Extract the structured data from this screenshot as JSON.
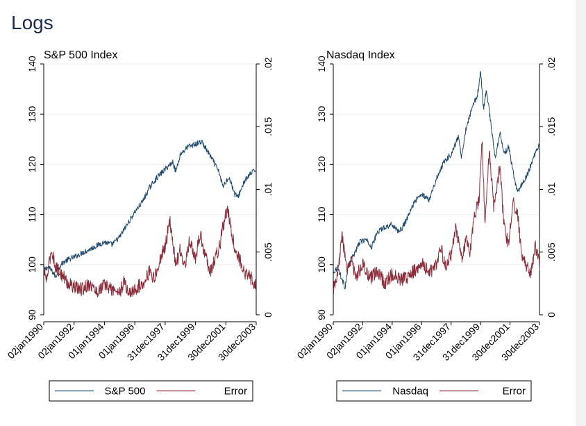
{
  "page": {
    "title": "Logs"
  },
  "colors": {
    "index_line": "#1f4a6e",
    "error_line": "#8b2d3a",
    "grid": "#e9eef2",
    "axis": "#000000",
    "title": "#1a2c4e"
  },
  "chart_data": [
    {
      "type": "line",
      "title": "S&P 500 Index",
      "xlabel": "",
      "ylabel": "",
      "x_ticks": [
        "02jan1990",
        "02jan1992",
        "01jan1994",
        "01jan1996",
        "31dec1997",
        "31dec1999",
        "30dec2001",
        "30dec2003"
      ],
      "x_range": [
        "02jan1990",
        "30dec2003"
      ],
      "y_left": {
        "range": [
          90,
          140
        ],
        "ticks": [
          "90",
          "100",
          "110",
          "120",
          "130",
          "140"
        ]
      },
      "y_right": {
        "range": [
          0,
          0.02
        ],
        "ticks": [
          "0",
          ".005",
          ".01",
          ".015",
          ".02"
        ]
      },
      "grid": true,
      "legend_position": "bottom",
      "series": [
        {
          "name": "S&P 500",
          "axis": "left",
          "x": [
            1990.0,
            1990.3,
            1990.6,
            1990.8,
            1991.0,
            1991.3,
            1991.6,
            1992.0,
            1992.5,
            1993.0,
            1993.5,
            1994.0,
            1994.5,
            1995.0,
            1995.5,
            1996.0,
            1996.5,
            1997.0,
            1997.5,
            1998.0,
            1998.5,
            1998.7,
            1999.0,
            1999.5,
            2000.0,
            2000.4,
            2000.8,
            2001.2,
            2001.6,
            2001.8,
            2002.2,
            2002.6,
            2002.8,
            2003.2,
            2003.6,
            2004.0
          ],
          "values": [
            99.0,
            99.5,
            98.5,
            97.5,
            99.5,
            100.5,
            101.0,
            101.5,
            102.3,
            103.0,
            103.8,
            104.5,
            104.0,
            105.5,
            108.0,
            110.5,
            112.5,
            115.5,
            117.5,
            119.0,
            120.5,
            118.5,
            122.0,
            123.5,
            124.0,
            124.5,
            122.5,
            120.5,
            118.0,
            115.5,
            117.5,
            114.0,
            113.5,
            116.5,
            118.0,
            119.0
          ]
        },
        {
          "name": "Error",
          "axis": "right",
          "x": [
            1990.0,
            1990.2,
            1990.5,
            1990.8,
            1991.2,
            1991.6,
            1992.0,
            1992.5,
            1993.0,
            1993.5,
            1994.0,
            1994.5,
            1995.0,
            1995.3,
            1995.6,
            1996.0,
            1996.5,
            1997.0,
            1997.3,
            1997.6,
            1998.0,
            1998.3,
            1998.7,
            1999.0,
            1999.3,
            1999.6,
            2000.0,
            2000.3,
            2000.6,
            2001.0,
            2001.3,
            2001.6,
            2001.8,
            2002.1,
            2002.4,
            2002.7,
            2003.0,
            2003.3,
            2003.6,
            2004.0
          ],
          "values": [
            0.0035,
            0.0028,
            0.0052,
            0.0038,
            0.0032,
            0.0025,
            0.0022,
            0.002,
            0.0025,
            0.0018,
            0.0024,
            0.002,
            0.0018,
            0.0026,
            0.0017,
            0.002,
            0.0025,
            0.0035,
            0.0028,
            0.0042,
            0.0055,
            0.0075,
            0.004,
            0.0052,
            0.0038,
            0.0058,
            0.0045,
            0.0065,
            0.0048,
            0.0035,
            0.0045,
            0.0055,
            0.007,
            0.0085,
            0.0065,
            0.0048,
            0.0042,
            0.0032,
            0.003,
            0.0024
          ]
        }
      ],
      "legend": [
        "S&P 500",
        "Error"
      ]
    },
    {
      "type": "line",
      "title": "Nasdaq Index",
      "xlabel": "",
      "ylabel": "",
      "x_ticks": [
        "02jan1990",
        "02jan1992",
        "01jan1994",
        "01jan1996",
        "31dec1997",
        "31dec1999",
        "30dec2001",
        "30dec2003"
      ],
      "x_range": [
        "02jan1990",
        "30dec2003"
      ],
      "y_left": {
        "range": [
          90,
          140
        ],
        "ticks": [
          "90",
          "100",
          "110",
          "120",
          "130",
          "140"
        ]
      },
      "y_right": {
        "range": [
          0,
          0.02
        ],
        "ticks": [
          "0",
          ".005",
          ".01",
          ".015",
          ".02"
        ]
      },
      "grid": true,
      "legend_position": "bottom",
      "series": [
        {
          "name": "Nasdaq",
          "axis": "left",
          "x": [
            1990.0,
            1990.3,
            1990.6,
            1990.8,
            1991.0,
            1991.4,
            1991.8,
            1992.2,
            1992.6,
            1993.0,
            1993.5,
            1994.0,
            1994.5,
            1995.0,
            1995.5,
            1996.0,
            1996.5,
            1997.0,
            1997.5,
            1998.0,
            1998.5,
            1998.7,
            1999.0,
            1999.4,
            1999.8,
            2000.0,
            2000.2,
            2000.4,
            2000.7,
            2001.0,
            2001.3,
            2001.6,
            2001.9,
            2002.2,
            2002.5,
            2002.8,
            2003.2,
            2003.6,
            2004.0
          ],
          "values": [
            98.5,
            99.5,
            97.0,
            95.5,
            99.5,
            102.0,
            104.5,
            105.0,
            103.5,
            106.5,
            107.5,
            108.0,
            106.5,
            109.0,
            112.5,
            114.0,
            113.0,
            117.0,
            120.5,
            122.0,
            125.5,
            121.5,
            127.0,
            131.0,
            134.0,
            138.5,
            131.0,
            135.0,
            128.0,
            121.0,
            126.5,
            122.0,
            123.5,
            118.5,
            114.5,
            116.0,
            118.0,
            121.5,
            124.0
          ]
        },
        {
          "name": "Error",
          "axis": "right",
          "x": [
            1990.0,
            1990.3,
            1990.6,
            1990.9,
            1991.2,
            1991.5,
            1992.0,
            1992.5,
            1993.0,
            1993.5,
            1994.0,
            1994.5,
            1995.0,
            1995.5,
            1996.0,
            1996.5,
            1997.0,
            1997.3,
            1997.6,
            1998.0,
            1998.3,
            1998.7,
            1999.0,
            1999.3,
            1999.6,
            1999.9,
            2000.1,
            2000.3,
            2000.6,
            2000.9,
            2001.1,
            2001.3,
            2001.6,
            2001.9,
            2002.2,
            2002.5,
            2002.8,
            2003.1,
            2003.4,
            2003.7,
            2004.0
          ],
          "values": [
            0.002,
            0.003,
            0.0065,
            0.0035,
            0.0045,
            0.003,
            0.004,
            0.0028,
            0.0035,
            0.0025,
            0.0032,
            0.0028,
            0.003,
            0.0035,
            0.0042,
            0.0033,
            0.004,
            0.0055,
            0.0038,
            0.0048,
            0.007,
            0.0045,
            0.006,
            0.005,
            0.008,
            0.009,
            0.014,
            0.0075,
            0.013,
            0.0085,
            0.01,
            0.012,
            0.007,
            0.0055,
            0.009,
            0.008,
            0.0048,
            0.004,
            0.0032,
            0.0055,
            0.004
          ]
        }
      ],
      "legend": [
        "Nasdaq",
        "Error"
      ]
    }
  ]
}
